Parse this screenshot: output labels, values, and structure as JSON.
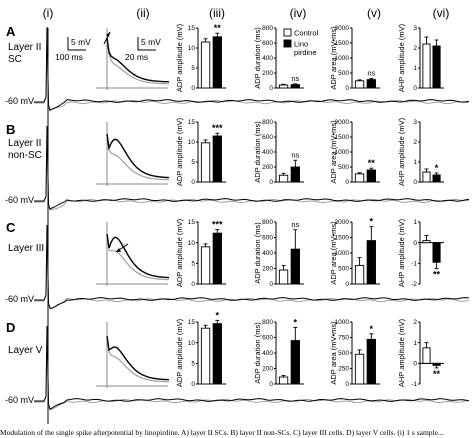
{
  "columns": [
    "(i)",
    "(ii)",
    "(iii)",
    "(iv)",
    "(v)",
    "(vi)"
  ],
  "rows": [
    {
      "label": "A",
      "layer": [
        "Layer II",
        "SC"
      ],
      "baseline": "-60 mV"
    },
    {
      "label": "B",
      "layer": [
        "Layer II",
        "non-SC"
      ],
      "baseline": "-60 mV"
    },
    {
      "label": "C",
      "layer": [
        "Layer III"
      ],
      "baseline": "-60 mV"
    },
    {
      "label": "D",
      "layer": [
        "Layer V"
      ],
      "baseline": "-60 mV"
    }
  ],
  "scale_bars": {
    "voltage_i": "5 mV",
    "time_i": "100 ms",
    "voltage_ii": "5 mV",
    "time_ii": "20 ms"
  },
  "legend": {
    "control": "Control",
    "drug": "Lino pirdine"
  },
  "colors": {
    "control_trace": "#a0a0a0",
    "drug_trace": "#000000",
    "control_bar": "#ffffff",
    "drug_bar": "#000000"
  },
  "chart_data": [
    {
      "type": "bar",
      "row": "A",
      "column": "(iii)",
      "ylabel": "ADP amplitude (mV)",
      "ylim": [
        0,
        15
      ],
      "ticks": [
        "0",
        "5",
        "10",
        "15"
      ],
      "categories": [
        "Control",
        "Linopirdine"
      ],
      "values": [
        11.5,
        12.8
      ],
      "errors": [
        0.8,
        0.9
      ],
      "significance": "**"
    },
    {
      "type": "bar",
      "row": "A",
      "column": "(iv)",
      "ylabel": "ADP duration (ms)",
      "ylim": [
        0,
        800
      ],
      "ticks": [
        "0",
        "200",
        "400",
        "600",
        "800"
      ],
      "categories": [
        "Control",
        "Linopirdine"
      ],
      "values": [
        40,
        45
      ],
      "errors": [
        10,
        10
      ],
      "significance": "ns"
    },
    {
      "type": "bar",
      "row": "A",
      "column": "(v)",
      "ylabel": "ADP area (mV•ms)",
      "ylim": [
        0,
        2000
      ],
      "ticks": [
        "0",
        "500",
        "1000",
        "1500",
        "2000"
      ],
      "categories": [
        "Control",
        "Linopirdine"
      ],
      "values": [
        240,
        280
      ],
      "errors": [
        30,
        40
      ],
      "significance": "ns"
    },
    {
      "type": "bar",
      "row": "A",
      "column": "(vi)",
      "ylabel": "AHP amplitude (mV)",
      "ylim": [
        0,
        3
      ],
      "ticks": [
        "0",
        "1",
        "2",
        "3"
      ],
      "categories": [
        "Control",
        "Linopirdine"
      ],
      "values": [
        2.2,
        2.1
      ],
      "errors": [
        0.35,
        0.3
      ],
      "significance": ""
    },
    {
      "type": "bar",
      "row": "B",
      "column": "(iii)",
      "ylabel": "ADP amplitude (mV)",
      "ylim": [
        0,
        15
      ],
      "ticks": [
        "0",
        "5",
        "10",
        "15"
      ],
      "categories": [
        "Control",
        "Linopirdine"
      ],
      "values": [
        9.8,
        11.5
      ],
      "errors": [
        0.7,
        0.7
      ],
      "significance": "***"
    },
    {
      "type": "bar",
      "row": "B",
      "column": "(iv)",
      "ylabel": "ADP duration (ms)",
      "ylim": [
        0,
        800
      ],
      "ticks": [
        "0",
        "200",
        "400",
        "600",
        "800"
      ],
      "categories": [
        "Control",
        "Linopirdine"
      ],
      "values": [
        90,
        200
      ],
      "errors": [
        25,
        90
      ],
      "significance": "ns"
    },
    {
      "type": "bar",
      "row": "B",
      "column": "(v)",
      "ylabel": "ADP area (mV•ms)",
      "ylim": [
        0,
        2000
      ],
      "ticks": [
        "0",
        "500",
        "1000",
        "1500",
        "2000"
      ],
      "categories": [
        "Control",
        "Linopirdine"
      ],
      "values": [
        270,
        400
      ],
      "errors": [
        40,
        60
      ],
      "significance": "**"
    },
    {
      "type": "bar",
      "row": "B",
      "column": "(vi)",
      "ylabel": "AHP amplitude (mV)",
      "ylim": [
        0,
        3
      ],
      "ticks": [
        "0",
        "1",
        "2",
        "3"
      ],
      "categories": [
        "Control",
        "Linopirdine"
      ],
      "values": [
        0.5,
        0.35
      ],
      "errors": [
        0.15,
        0.1
      ],
      "significance": "*"
    },
    {
      "type": "bar",
      "row": "C",
      "column": "(iii)",
      "ylabel": "ADP amplitude (mV)",
      "ylim": [
        0,
        15
      ],
      "ticks": [
        "0",
        "5",
        "10",
        "15"
      ],
      "categories": [
        "Control",
        "Linopirdine"
      ],
      "values": [
        9.0,
        12.3
      ],
      "errors": [
        0.7,
        0.9
      ],
      "significance": "***"
    },
    {
      "type": "bar",
      "row": "C",
      "column": "(iv)",
      "ylabel": "ADP duration (ms)",
      "ylim": [
        0,
        800
      ],
      "ticks": [
        "0",
        "200",
        "400",
        "600",
        "800"
      ],
      "categories": [
        "Control",
        "Linopirdine"
      ],
      "values": [
        180,
        450
      ],
      "errors": [
        60,
        250
      ],
      "significance": "ns"
    },
    {
      "type": "bar",
      "row": "C",
      "column": "(v)",
      "ylabel": "ADP area (mV•ms)",
      "ylim": [
        0,
        2000
      ],
      "ticks": [
        "0",
        "500",
        "1000",
        "1500",
        "2000"
      ],
      "categories": [
        "Control",
        "Linopirdine"
      ],
      "values": [
        600,
        1400
      ],
      "errors": [
        250,
        450
      ],
      "significance": "*"
    },
    {
      "type": "bar",
      "row": "C",
      "column": "(vi)",
      "ylabel": "AHP amplitude (mV)",
      "ylim": [
        -2,
        1
      ],
      "ticks": [
        "-2",
        "-1",
        "0",
        "1"
      ],
      "categories": [
        "Control",
        "Linopirdine"
      ],
      "values": [
        0.1,
        -0.95
      ],
      "errors": [
        0.25,
        0.3
      ],
      "significance": "**"
    },
    {
      "type": "bar",
      "row": "D",
      "column": "(iii)",
      "ylabel": "ADP amplitude (mV)",
      "ylim": [
        0,
        15
      ],
      "ticks": [
        "0",
        "5",
        "10",
        "15"
      ],
      "categories": [
        "Control",
        "Linopirdine"
      ],
      "values": [
        13.5,
        14.6
      ],
      "errors": [
        0.7,
        0.8
      ],
      "significance": "*"
    },
    {
      "type": "bar",
      "row": "D",
      "column": "(iv)",
      "ylabel": "ADP duration (ms)",
      "ylim": [
        0,
        800
      ],
      "ticks": [
        "0",
        "200",
        "400",
        "600",
        "800"
      ],
      "categories": [
        "Control",
        "Linopirdine"
      ],
      "values": [
        90,
        560
      ],
      "errors": [
        20,
        170
      ],
      "significance": "*"
    },
    {
      "type": "bar",
      "row": "D",
      "column": "(v)",
      "ylabel": "ADP area (mV•ms)",
      "ylim": [
        0,
        1000
      ],
      "ticks": [
        "0",
        "250",
        "500",
        "750",
        "1000"
      ],
      "categories": [
        "Control",
        "Linopirdine"
      ],
      "values": [
        480,
        720
      ],
      "errors": [
        70,
        90
      ],
      "significance": "*"
    },
    {
      "type": "bar",
      "row": "D",
      "column": "(vi)",
      "ylabel": "AHP amplitude (mV)",
      "ylim": [
        -1,
        2
      ],
      "ticks": [
        "-1",
        "0",
        "1",
        "2"
      ],
      "categories": [
        "Control",
        "Linopirdine"
      ],
      "values": [
        0.75,
        -0.1
      ],
      "errors": [
        0.25,
        0.12
      ],
      "significance": "**"
    }
  ],
  "caption": "Modulation of the single spike afterpotential by linopirdine. A) layer II SCs. B) layer II non-SCs. C) layer III cells. D) layer V cells. (i) 1 s sample..."
}
